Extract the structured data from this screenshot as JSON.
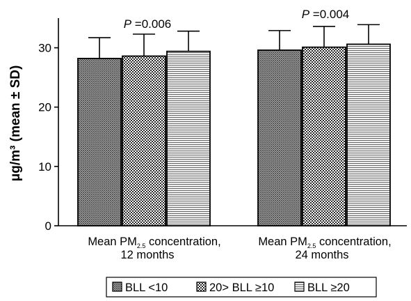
{
  "chart_data": {
    "type": "bar",
    "ylabel": "μg/m³ (mean ± SD)",
    "ylim": [
      0,
      35
    ],
    "yticks": [
      "0",
      "10",
      "20",
      "30"
    ],
    "category_labels": [
      {
        "line1_pre": "Mean PM",
        "line1_sub": "2.5",
        "line1_post": " concentration,",
        "line2": "12 months"
      },
      {
        "line1_pre": "Mean PM",
        "line1_sub": "2.5",
        "line1_post": " concentration,",
        "line2": "24 months"
      }
    ],
    "series": [
      {
        "name": "BLL <10",
        "values": [
          28.2,
          29.6
        ],
        "sd": [
          3.5,
          3.3
        ]
      },
      {
        "name": "20> BLL ≥10",
        "values": [
          28.6,
          30.1
        ],
        "sd": [
          3.7,
          3.5
        ]
      },
      {
        "name": "BLL ≥20",
        "values": [
          29.4,
          30.6
        ],
        "sd": [
          3.4,
          3.3
        ]
      }
    ],
    "annotations": [
      {
        "italic": "P",
        "text": " =0.006"
      },
      {
        "italic": "P",
        "text": " =0.004"
      }
    ],
    "legend": {
      "placement": "bottom"
    },
    "grid": false
  }
}
